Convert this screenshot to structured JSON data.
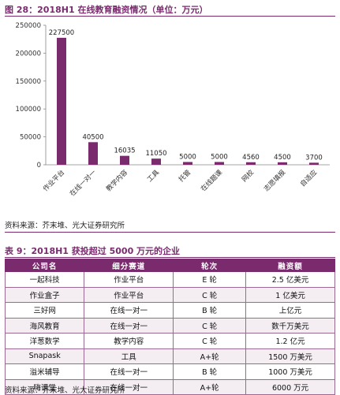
{
  "figure": {
    "title": "图 28：2018H1 在线教育融资情况（单位：万元）",
    "source": "资料来源：芥末堆、光大证券研究所"
  },
  "chart_data": {
    "type": "bar",
    "title": "",
    "xlabel": "",
    "ylabel": "",
    "categories": [
      "作业平台",
      "在线一对一",
      "教学内容",
      "工具",
      "托管",
      "在线题课",
      "网校",
      "志愿填报",
      "自适应"
    ],
    "values": [
      227500,
      40500,
      16035,
      11050,
      5000,
      5000,
      4560,
      4500,
      3700
    ],
    "value_labels": [
      "227500",
      "40500",
      "16035",
      "11050",
      "5000",
      "5000",
      "4560",
      "4500",
      "3700"
    ],
    "yticks": [
      "0",
      "50000",
      "100000",
      "150000",
      "200000",
      "250000"
    ],
    "ylim": [
      0,
      250000
    ],
    "bar_color": "#7a2b6e",
    "grid": false,
    "legend": "none"
  },
  "table": {
    "title": "表 9：2018H1 获投超过 5000 万元的企业",
    "headers": [
      "公司名",
      "细分赛道",
      "轮次",
      "融资额"
    ],
    "rows": [
      [
        "一起科技",
        "作业平台",
        "E 轮",
        "2.5 亿美元"
      ],
      [
        "作业盒子",
        "作业平台",
        "C 轮",
        "1 亿美元"
      ],
      [
        "三好网",
        "在线一对一",
        "B 轮",
        "上亿元"
      ],
      [
        "海风教育",
        "在线一对一",
        "C 轮",
        "数千万美元"
      ],
      [
        "洋葱数学",
        "教学内容",
        "C 轮",
        "1.2 亿元"
      ],
      [
        "Snapask",
        "工具",
        "A+轮",
        "1500 万美元"
      ],
      [
        "溢米辅导",
        "在线一对一",
        "B 轮",
        "1000 万美元"
      ],
      [
        "嗨课堂",
        "在线一对一",
        "A+轮",
        "6000 万元"
      ]
    ],
    "source": "资料来源：芥末堆、光大证券研究所"
  },
  "colors": {
    "accent": "#7a2b6e"
  }
}
